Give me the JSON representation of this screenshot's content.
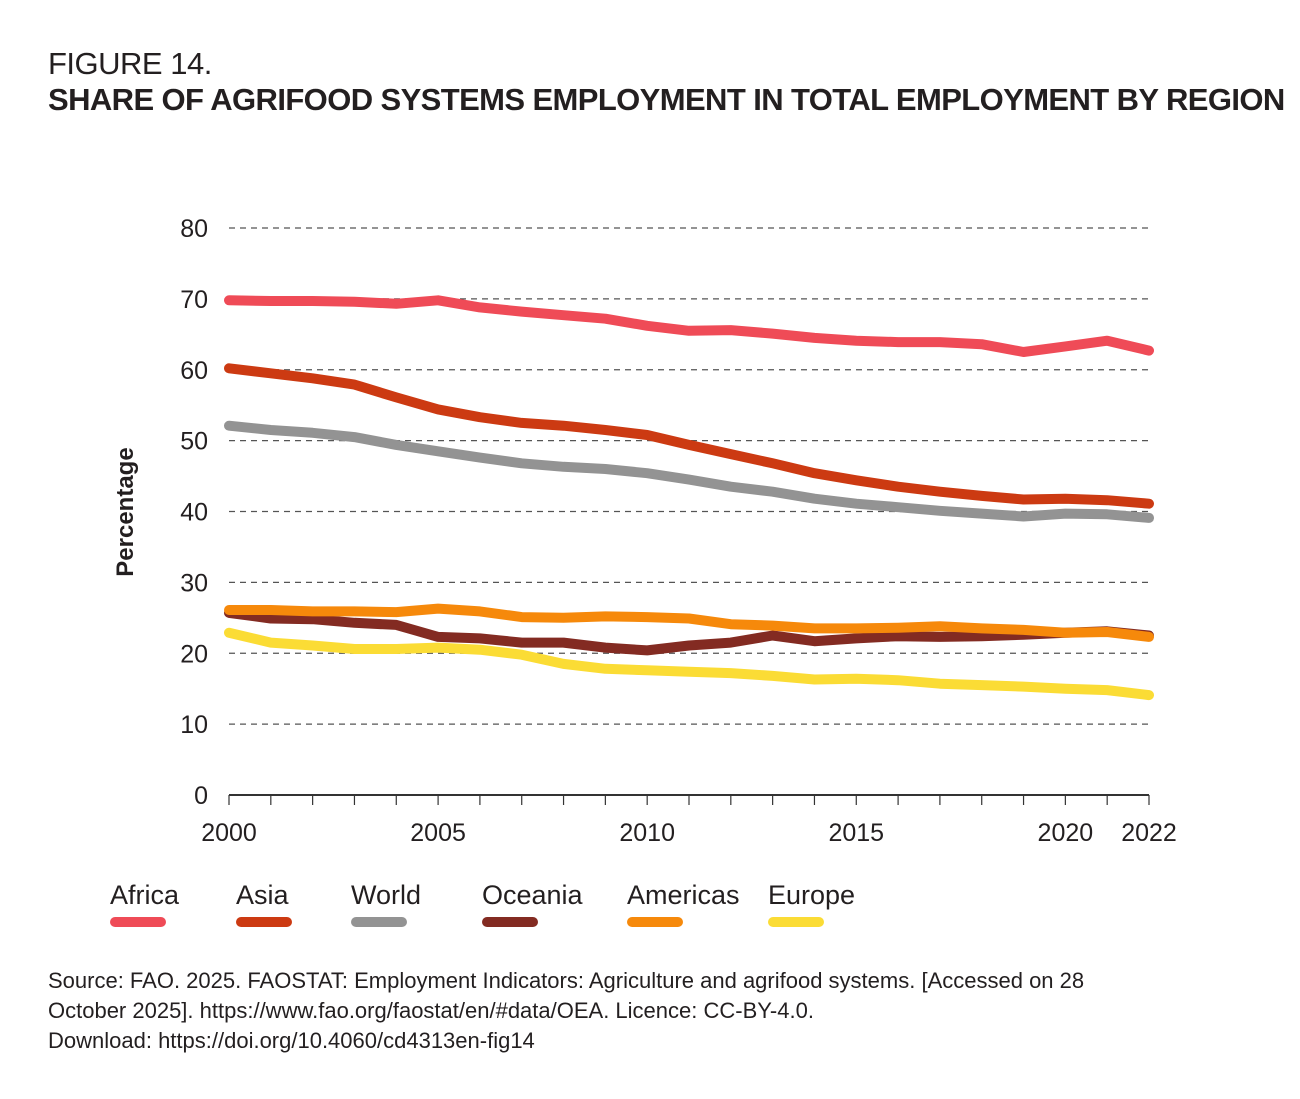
{
  "figure": {
    "label": "FIGURE 14.",
    "title": "SHARE OF AGRIFOOD SYSTEMS EMPLOYMENT IN TOTAL EMPLOYMENT BY REGION"
  },
  "source": {
    "lines": [
      "Source: FAO. 2025. FAOSTAT: Employment Indicators: Agriculture and agrifood systems. [Accessed on 28",
      "October 2025]. https://www.fao.org/faostat/en/#data/OEA. Licence: CC-BY-4.0.",
      "Download: https://doi.org/10.4060/cd4313en-fig14"
    ]
  },
  "chart_data": {
    "type": "line",
    "title": "SHARE OF AGRIFOOD SYSTEMS EMPLOYMENT IN TOTAL EMPLOYMENT BY REGION",
    "xlabel": "",
    "ylabel": "Percentage",
    "x": [
      2000,
      2001,
      2002,
      2003,
      2004,
      2005,
      2006,
      2007,
      2008,
      2009,
      2010,
      2011,
      2012,
      2013,
      2014,
      2015,
      2016,
      2017,
      2018,
      2019,
      2020,
      2021,
      2022
    ],
    "xticks": [
      "2000",
      "2005",
      "2010",
      "2015",
      "2020",
      "2022"
    ],
    "xtick_values": [
      2000,
      2005,
      2010,
      2015,
      2020,
      2022
    ],
    "ylim": [
      0,
      80
    ],
    "yticks": [
      0,
      10,
      20,
      30,
      40,
      50,
      60,
      70,
      80
    ],
    "grid": true,
    "legend_position": "bottom",
    "series": [
      {
        "name": "Africa",
        "color": "#ef4b57",
        "values": [
          69.8,
          69.7,
          69.7,
          69.6,
          69.3,
          69.8,
          68.8,
          68.2,
          67.7,
          67.2,
          66.2,
          65.5,
          65.6,
          65.1,
          64.5,
          64.1,
          63.9,
          63.9,
          63.6,
          62.5,
          63.3,
          64.1,
          62.7
        ]
      },
      {
        "name": "Asia",
        "color": "#cc3a12",
        "values": [
          60.2,
          59.5,
          58.8,
          57.9,
          56.1,
          54.4,
          53.3,
          52.5,
          52.1,
          51.5,
          50.8,
          49.4,
          48.1,
          46.8,
          45.4,
          44.4,
          43.5,
          42.8,
          42.2,
          41.7,
          41.8,
          41.6,
          41.1
        ]
      },
      {
        "name": "World",
        "color": "#939393",
        "values": [
          52.1,
          51.5,
          51.1,
          50.5,
          49.4,
          48.5,
          47.6,
          46.8,
          46.3,
          46.0,
          45.4,
          44.5,
          43.5,
          42.8,
          41.8,
          41.1,
          40.6,
          40.1,
          39.7,
          39.3,
          39.7,
          39.6,
          39.1
        ]
      },
      {
        "name": "Oceania",
        "color": "#832b22",
        "values": [
          25.7,
          24.9,
          24.8,
          24.3,
          24.0,
          22.3,
          22.1,
          21.5,
          21.5,
          20.8,
          20.4,
          21.1,
          21.5,
          22.5,
          21.7,
          22.1,
          22.4,
          22.3,
          22.4,
          22.6,
          22.9,
          23.1,
          22.5
        ]
      },
      {
        "name": "Americas",
        "color": "#f6890b",
        "values": [
          26.1,
          26.1,
          25.9,
          25.9,
          25.8,
          26.3,
          25.9,
          25.1,
          25.0,
          25.2,
          25.1,
          24.9,
          24.1,
          23.9,
          23.5,
          23.5,
          23.6,
          23.8,
          23.5,
          23.3,
          22.9,
          23.0,
          22.3
        ]
      },
      {
        "name": "Europe",
        "color": "#fbdc35",
        "values": [
          22.9,
          21.5,
          21.1,
          20.6,
          20.6,
          20.8,
          20.5,
          19.8,
          18.5,
          17.8,
          17.6,
          17.4,
          17.2,
          16.8,
          16.3,
          16.4,
          16.2,
          15.7,
          15.5,
          15.3,
          15.0,
          14.8,
          14.1
        ]
      }
    ]
  }
}
